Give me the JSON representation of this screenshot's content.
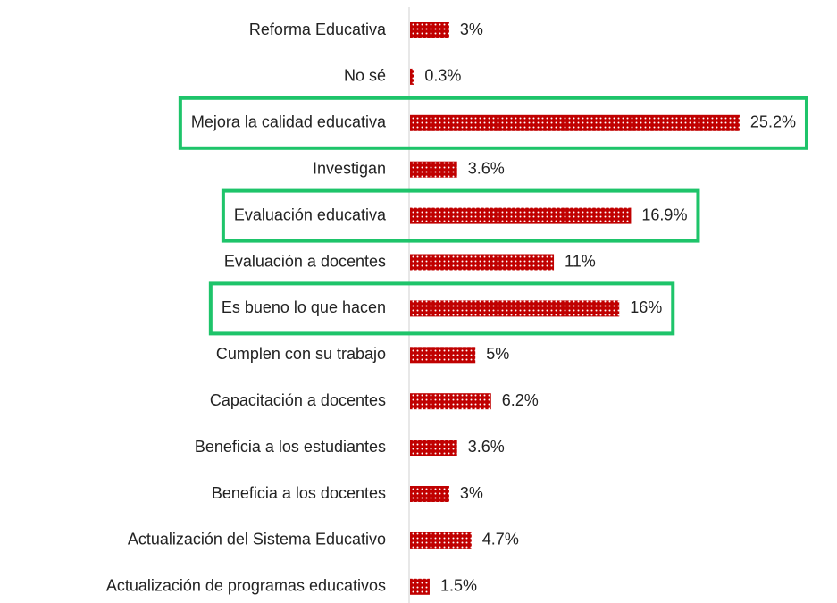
{
  "chart_data": {
    "type": "bar",
    "orientation": "horizontal",
    "categories": [
      "Reforma Educativa",
      "No sé",
      "Mejora la calidad educativa",
      "Investigan",
      "Evaluación educativa",
      "Evaluación a docentes",
      "Es bueno lo que hacen",
      "Cumplen con su trabajo",
      "Capacitación a docentes",
      "Beneficia a los estudiantes",
      "Beneficia a los docentes",
      "Actualización del Sistema Educativo",
      "Actualización de programas educativos"
    ],
    "values": [
      3,
      0.3,
      25.2,
      3.6,
      16.9,
      11,
      16,
      5,
      6.2,
      3.6,
      3,
      4.7,
      1.5
    ],
    "value_labels": [
      "3%",
      "0.3%",
      "25.2%",
      "3.6%",
      "16.9%",
      "11%",
      "16%",
      "5%",
      "6.2%",
      "3.6%",
      "3%",
      "4.7%",
      "1.5%"
    ],
    "color": "#c00000",
    "highlight_color": "#1ec46a",
    "highlight": [
      2,
      4,
      6
    ]
  }
}
